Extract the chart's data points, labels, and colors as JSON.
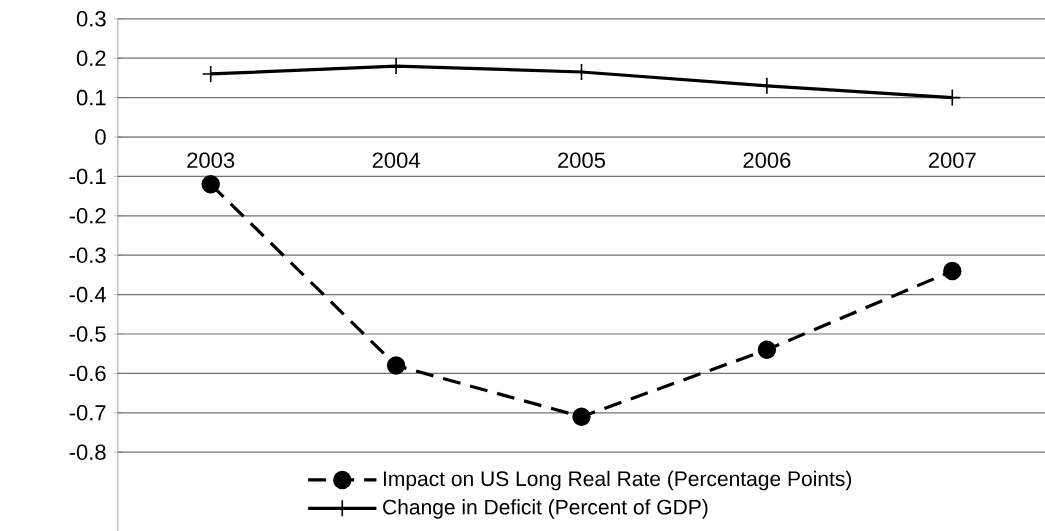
{
  "chart_data": {
    "type": "line",
    "categories": [
      "2003",
      "2004",
      "2005",
      "2006",
      "2007"
    ],
    "series": [
      {
        "name": "Impact on US Long Real Rate (Percentage Points)",
        "color": "#000000",
        "values": [
          -0.12,
          -0.58,
          -0.71,
          -0.54,
          -0.34
        ],
        "marker": "circle",
        "line_style": "dashed"
      },
      {
        "name": "Change in Deficit (Percent of GDP)",
        "color": "#000000",
        "values": [
          0.16,
          0.18,
          0.165,
          0.13,
          0.1
        ],
        "marker": "cross",
        "line_style": "solid"
      }
    ],
    "ylim": [
      -1.0,
      0.3
    ],
    "yticks": [
      0.3,
      0.2,
      0.1,
      0,
      -0.1,
      -0.2,
      -0.3,
      -0.4,
      -0.5,
      -0.6,
      -0.7,
      -0.8
    ],
    "grid": "y",
    "legend": "bottom"
  }
}
